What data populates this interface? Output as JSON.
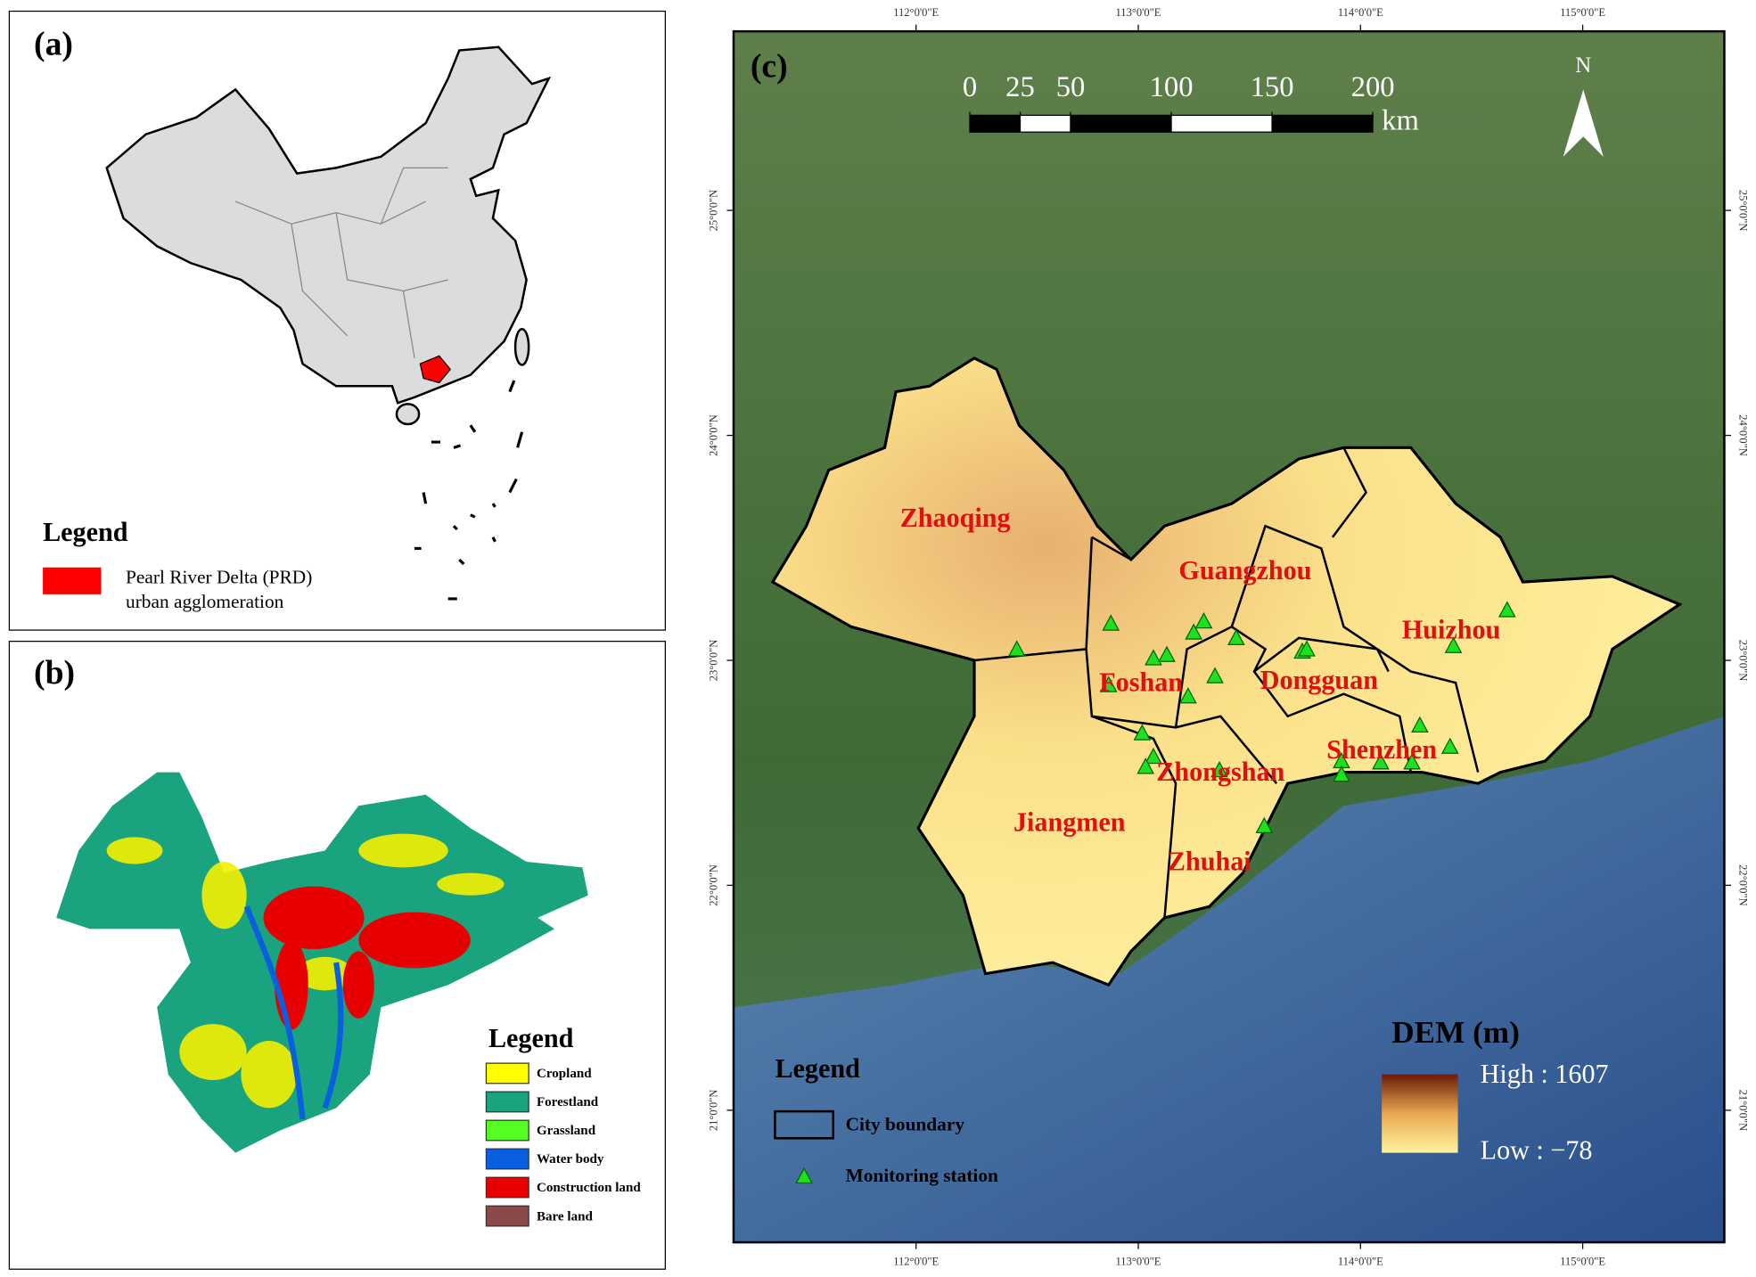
{
  "panel_a": {
    "label": "(a)",
    "legend_title": "Legend",
    "legend_items": [
      {
        "label": "Pearl River Delta (PRD) urban agglomeration",
        "color": "#ff0000"
      }
    ]
  },
  "panel_b": {
    "label": "(b)",
    "legend_title": "Legend",
    "legend_items": [
      {
        "label": "Cropland",
        "color": "#ffff00"
      },
      {
        "label": "Forestland",
        "color": "#1aa37f"
      },
      {
        "label": "Grassland",
        "color": "#55ff22"
      },
      {
        "label": "Water body",
        "color": "#0a5fe0"
      },
      {
        "label": "Construction land",
        "color": "#e80000"
      },
      {
        "label": "Bare land",
        "color": "#8a4a4a"
      }
    ]
  },
  "panel_c": {
    "label": "(c)",
    "north": "N",
    "xticks": [
      {
        "value": 112,
        "label": "112°0'0\"E"
      },
      {
        "value": 113,
        "label": "113°0'0\"E"
      },
      {
        "value": 114,
        "label": "114°0'0\"E"
      },
      {
        "value": 115,
        "label": "115°0'0\"E"
      }
    ],
    "yticks": [
      {
        "value": 25,
        "label": "25°0'0\"N"
      },
      {
        "value": 24,
        "label": "24°0'0\"N"
      },
      {
        "value": 23,
        "label": "23°0'0\"N"
      },
      {
        "value": 22,
        "label": "22°0'0\"N"
      },
      {
        "value": 21,
        "label": "21°0'0\"N"
      }
    ],
    "scale_bar": {
      "ticks": [
        0,
        25,
        50,
        100,
        150,
        200
      ],
      "unit": "km"
    },
    "cities": [
      "Zhaoqing",
      "Guangzhou",
      "Huizhou",
      "Foshan",
      "Dongguan",
      "Shenzhen",
      "Zhongshan",
      "Jiangmen",
      "Zhuhai"
    ],
    "legend_title": "Legend",
    "legend_items": [
      "City boundary",
      "Monitoring station"
    ],
    "dem_title": "DEM (m)",
    "dem_high": "High : 1607",
    "dem_low": "Low : −78"
  }
}
